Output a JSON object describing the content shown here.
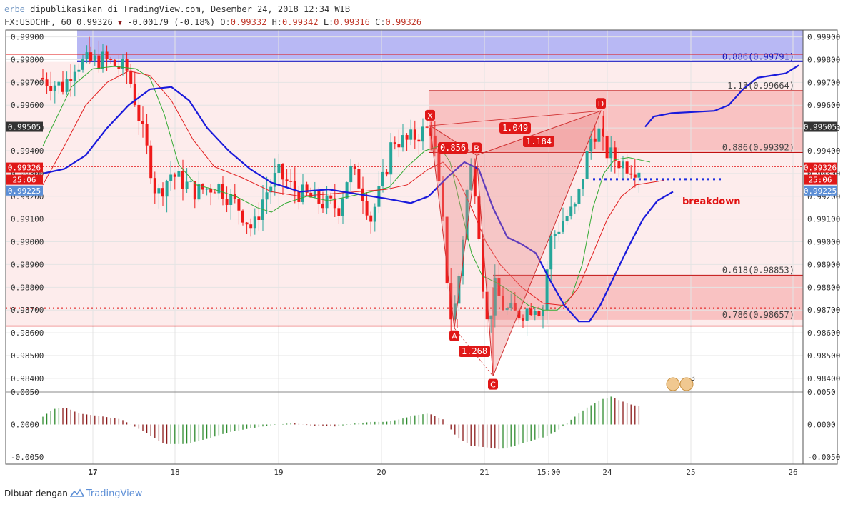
{
  "header": {
    "author": "erbe",
    "published_text": "dipublikasikan di TradingView.com, Desember 24, 2018 12:34 WIB",
    "symbol": "FX:USDCHF, 60",
    "last": "0.99326",
    "change": "-0.00179 (-0.18%)",
    "o_label": "O:",
    "o": "0.99332",
    "h_label": "H:",
    "h": "0.99342",
    "l_label": "L:",
    "l": "0.99316",
    "c_label": "C:",
    "c": "0.99326"
  },
  "footer": {
    "made_with": "Dibuat dengan",
    "brand": "TradingView"
  },
  "colors": {
    "up": "#26a69a",
    "down": "#ef1a1a",
    "sma_fast": "#33aa33",
    "sma_mid": "#e22020",
    "sma_slow": "#1a1adb",
    "zone_blue": "#a0a0f0",
    "zone_red": "#f7b8b8"
  },
  "chart_data": {
    "type": "candlestick",
    "symbol": "FX:USDCHF",
    "timeframe": "60",
    "ylim": [
      0.9834,
      0.9993
    ],
    "y_ticks": [
      "0.99900",
      "0.99800",
      "0.99700",
      "0.99600",
      "0.99500",
      "0.99400",
      "0.99300",
      "0.99200",
      "0.99100",
      "0.99000",
      "0.98900",
      "0.98800",
      "0.98700",
      "0.98600",
      "0.98500",
      "0.98400"
    ],
    "x_ticks": [
      "17",
      "18",
      "19",
      "20",
      "21",
      "15:00",
      "24",
      "25",
      "26"
    ],
    "price_badges": [
      {
        "value": "0.99505",
        "kind": "dark"
      },
      {
        "value": "0.99326",
        "kind": "red"
      },
      {
        "value": "25:06",
        "kind": "red"
      },
      {
        "value": "0.99225",
        "kind": "blue"
      }
    ],
    "fib_levels": [
      {
        "label": "0.886(0.99791)",
        "value": 0.99791
      },
      {
        "label": "1.13(0.99664)",
        "value": 0.99664
      },
      {
        "label": "0.886(0.99392)",
        "value": 0.99392
      },
      {
        "label": "0.618(0.98853)",
        "value": 0.98853
      },
      {
        "label": "0.786(0.98657)",
        "value": 0.98657
      }
    ],
    "horizontal_lines": [
      {
        "value": 0.99824,
        "style": "solid"
      },
      {
        "value": 0.9863,
        "style": "solid"
      },
      {
        "value": 0.98708,
        "style": "dotted"
      }
    ],
    "pattern_points": [
      {
        "label": "X",
        "value": 0.9951
      },
      {
        "label": "A",
        "value": 0.9862
      },
      {
        "label": "B",
        "value": 0.9938
      },
      {
        "label": "C",
        "value": 0.9841
      },
      {
        "label": "D",
        "value": 0.99575
      }
    ],
    "ratios": [
      "0.856",
      "1.049",
      "1.184",
      "1.268"
    ],
    "annotations": [
      "breakdown"
    ],
    "breakdown_level": 0.99275,
    "oscillator": {
      "y_ticks": [
        "0.0050",
        "0.0000",
        "-0.0050"
      ],
      "ylim": [
        -0.005,
        0.005
      ]
    }
  }
}
